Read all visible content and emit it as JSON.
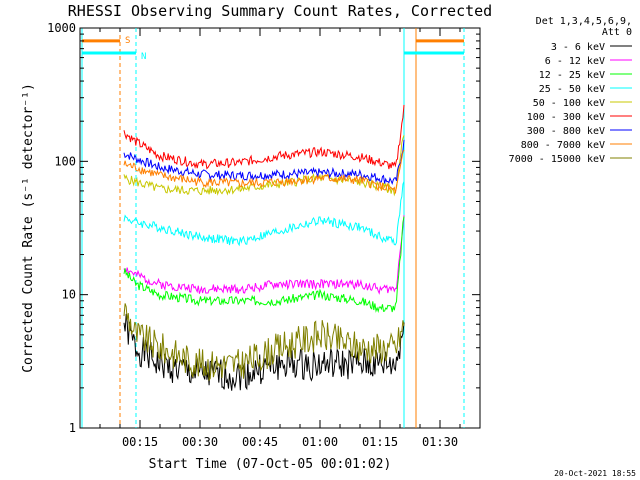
{
  "chart_data": {
    "type": "line",
    "title": "RHESSI Observing Summary Count Rates, Corrected",
    "xlabel": "Start Time (07-Oct-05 00:01:02)",
    "ylabel": "Corrected Count Rate (s⁻¹ detector⁻¹)",
    "x_unit": "minutes after 00:00 UT",
    "x_range": [
      0,
      100
    ],
    "ylim": [
      1,
      1000
    ],
    "yscale": "log",
    "x_ticks": [
      {
        "value": 15,
        "label": "00:15"
      },
      {
        "value": 30,
        "label": "00:30"
      },
      {
        "value": 45,
        "label": "00:45"
      },
      {
        "value": 60,
        "label": "01:00"
      },
      {
        "value": 75,
        "label": "01:15"
      },
      {
        "value": 90,
        "label": "01:30"
      }
    ],
    "y_ticks": [
      {
        "value": 1,
        "label": "1"
      },
      {
        "value": 10,
        "label": "10"
      },
      {
        "value": 100,
        "label": "100"
      },
      {
        "value": 1000,
        "label": "1000"
      }
    ],
    "legend": {
      "placement": "top-right",
      "header": [
        "Det 1,3,4,5,6,9,",
        "Att 0"
      ]
    },
    "x": [
      11,
      14,
      20,
      30,
      40,
      50,
      60,
      70,
      75,
      79,
      81
    ],
    "series": [
      {
        "name": "3 - 6 keV",
        "color": "#000000",
        "values": [
          6,
          4,
          3,
          2.5,
          2.5,
          3,
          3,
          3,
          3,
          3,
          6
        ]
      },
      {
        "name": "6 - 12 keV",
        "color": "#ff00ff",
        "values": [
          16,
          14,
          12,
          11,
          11,
          12,
          12,
          12,
          11,
          11,
          40
        ]
      },
      {
        "name": "12 - 25 keV",
        "color": "#00ff00",
        "values": [
          15,
          12,
          10,
          9,
          9,
          9,
          10,
          9,
          8,
          8,
          40
        ]
      },
      {
        "name": "25 - 50 keV",
        "color": "#00ffff",
        "values": [
          38,
          35,
          32,
          27,
          25,
          30,
          36,
          32,
          27,
          25,
          75
        ]
      },
      {
        "name": "50 - 100 keV",
        "color": "#c8c800",
        "values": [
          75,
          70,
          62,
          60,
          62,
          68,
          75,
          70,
          65,
          60,
          170
        ]
      },
      {
        "name": "100 - 300 keV",
        "color": "#ff0000",
        "values": [
          165,
          140,
          110,
          95,
          98,
          110,
          118,
          108,
          98,
          90,
          250
        ]
      },
      {
        "name": "300 - 800 keV",
        "color": "#0000ff",
        "values": [
          115,
          105,
          90,
          80,
          78,
          80,
          82,
          80,
          75,
          70,
          140
        ]
      },
      {
        "name": "800 - 7000 keV",
        "color": "#ff7f00",
        "values": [
          95,
          90,
          78,
          70,
          68,
          70,
          75,
          72,
          65,
          60,
          120
        ]
      },
      {
        "name": "7000 - 15000 keV",
        "color": "#808000",
        "values": [
          8,
          5,
          4,
          3,
          3,
          4,
          5,
          4,
          4,
          4,
          6
        ]
      }
    ],
    "state_markers": [
      {
        "label": "S",
        "color": "#ff7f00"
      },
      {
        "label": "N",
        "color": "#00ffff"
      }
    ],
    "timestamp": "20-Oct-2021 18:55"
  }
}
